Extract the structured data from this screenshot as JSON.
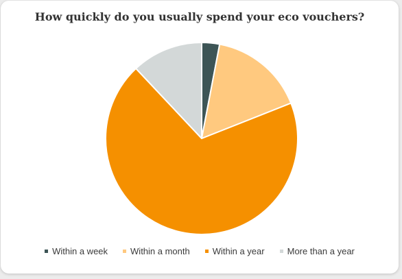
{
  "chart_data": {
    "type": "pie",
    "title": "How quickly do you usually spend your eco vouchers?",
    "categories": [
      "Within a week",
      "Within a month",
      "Within a year",
      "More than a year"
    ],
    "values": [
      3,
      16,
      69,
      12
    ],
    "colors": [
      "#3d5556",
      "#ffc97f",
      "#f59000",
      "#d3d8d8"
    ],
    "legend_position": "bottom",
    "start_angle_deg": 0,
    "direction": "clockwise"
  }
}
